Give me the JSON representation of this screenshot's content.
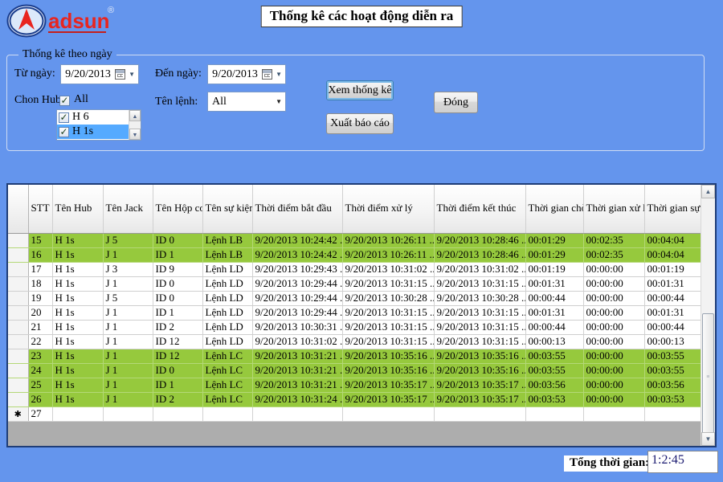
{
  "app": {
    "title": "Thống kê các hoạt động diễn ra",
    "logo_text": "adsun",
    "registered_mark": "®"
  },
  "colors": {
    "background": "#6495ED",
    "row_highlight": "#96c93d",
    "selection_blue": "#55aaff",
    "logo_red": "#e8251f",
    "logo_navy": "#1b3e8e",
    "total_text": "#191970"
  },
  "icons": {
    "dropdown_arrow": "▼",
    "up_arrow": "▲",
    "down_arrow": "▼",
    "checkmark": "✓",
    "new_row_star": "✱",
    "thumb_grip": "≡"
  },
  "filters": {
    "group_title": "Thống kê theo ngày",
    "from_label": "Từ ngày:",
    "from_value": "9/20/2013",
    "to_label": "Đến ngày:",
    "to_value": "9/20/2013",
    "hub_label": "Chon Hub:",
    "hub_all_label": "All",
    "hub_all_checked": true,
    "hub_items": [
      {
        "label": "H 6",
        "checked": true,
        "selected": false
      },
      {
        "label": "H 1s",
        "checked": true,
        "selected": true
      }
    ],
    "command_label": "Tên lệnh:",
    "command_value": "All",
    "view_button": "Xem thống kê",
    "export_button": "Xuất báo cáo",
    "close_button": "Đóng"
  },
  "table": {
    "columns": [
      "STT",
      "Tên Hub",
      "Tên Jack",
      "Tên Hộp con",
      "Tên sự kiện",
      "Thời điểm bắt đầu",
      "Thời điểm xử lý",
      "Thời điểm kết thúc",
      "Thời gian chờ",
      "Thời gian xử lý",
      "Thời gian sự kiện"
    ],
    "rows": [
      {
        "new_row": false,
        "highlight": true,
        "cells": [
          "15",
          "H 1s",
          "J 5",
          "ID 0",
          "Lệnh LB",
          "9/20/2013 10:24:42 ...",
          "9/20/2013 10:26:11 ...",
          "9/20/2013 10:28:46 ...",
          "00:01:29",
          "00:02:35",
          "00:04:04"
        ]
      },
      {
        "new_row": false,
        "highlight": true,
        "cells": [
          "16",
          "H 1s",
          "J 1",
          "ID 1",
          "Lệnh LB",
          "9/20/2013 10:24:42 ...",
          "9/20/2013 10:26:11 ...",
          "9/20/2013 10:28:46 ...",
          "00:01:29",
          "00:02:35",
          "00:04:04"
        ]
      },
      {
        "new_row": false,
        "highlight": false,
        "cells": [
          "17",
          "H 1s",
          "J 3",
          "ID 9",
          "Lệnh LD",
          "9/20/2013 10:29:43 ...",
          "9/20/2013 10:31:02 ...",
          "9/20/2013 10:31:02 ...",
          "00:01:19",
          "00:00:00",
          "00:01:19"
        ]
      },
      {
        "new_row": false,
        "highlight": false,
        "cells": [
          "18",
          "H 1s",
          "J 1",
          "ID 0",
          "Lệnh LD",
          "9/20/2013 10:29:44 ...",
          "9/20/2013 10:31:15 ...",
          "9/20/2013 10:31:15 ...",
          "00:01:31",
          "00:00:00",
          "00:01:31"
        ]
      },
      {
        "new_row": false,
        "highlight": false,
        "cells": [
          "19",
          "H 1s",
          "J 5",
          "ID 0",
          "Lệnh LD",
          "9/20/2013 10:29:44 ...",
          "9/20/2013 10:30:28 ...",
          "9/20/2013 10:30:28 ...",
          "00:00:44",
          "00:00:00",
          "00:00:44"
        ]
      },
      {
        "new_row": false,
        "highlight": false,
        "cells": [
          "20",
          "H 1s",
          "J 1",
          "ID 1",
          "Lệnh LD",
          "9/20/2013 10:29:44 ...",
          "9/20/2013 10:31:15 ...",
          "9/20/2013 10:31:15 ...",
          "00:01:31",
          "00:00:00",
          "00:01:31"
        ]
      },
      {
        "new_row": false,
        "highlight": false,
        "cells": [
          "21",
          "H 1s",
          "J 1",
          "ID 2",
          "Lệnh LD",
          "9/20/2013 10:30:31 ...",
          "9/20/2013 10:31:15 ...",
          "9/20/2013 10:31:15 ...",
          "00:00:44",
          "00:00:00",
          "00:00:44"
        ]
      },
      {
        "new_row": false,
        "highlight": false,
        "cells": [
          "22",
          "H 1s",
          "J 1",
          "ID 12",
          "Lệnh LD",
          "9/20/2013 10:31:02 ...",
          "9/20/2013 10:31:15 ...",
          "9/20/2013 10:31:15 ...",
          "00:00:13",
          "00:00:00",
          "00:00:13"
        ]
      },
      {
        "new_row": false,
        "highlight": true,
        "cells": [
          "23",
          "H 1s",
          "J 1",
          "ID 12",
          "Lệnh LC",
          "9/20/2013 10:31:21 ...",
          "9/20/2013 10:35:16 ...",
          "9/20/2013 10:35:16 ...",
          "00:03:55",
          "00:00:00",
          "00:03:55"
        ]
      },
      {
        "new_row": false,
        "highlight": true,
        "cells": [
          "24",
          "H 1s",
          "J 1",
          "ID 0",
          "Lệnh LC",
          "9/20/2013 10:31:21 ...",
          "9/20/2013 10:35:16 ...",
          "9/20/2013 10:35:16 ...",
          "00:03:55",
          "00:00:00",
          "00:03:55"
        ]
      },
      {
        "new_row": false,
        "highlight": true,
        "cells": [
          "25",
          "H 1s",
          "J 1",
          "ID 1",
          "Lệnh LC",
          "9/20/2013 10:31:21 ...",
          "9/20/2013 10:35:17 ...",
          "9/20/2013 10:35:17 ...",
          "00:03:56",
          "00:00:00",
          "00:03:56"
        ]
      },
      {
        "new_row": false,
        "highlight": true,
        "cells": [
          "26",
          "H 1s",
          "J 1",
          "ID 2",
          "Lệnh LC",
          "9/20/2013 10:31:24 ...",
          "9/20/2013 10:35:17 ...",
          "9/20/2013 10:35:17 ...",
          "00:03:53",
          "00:00:00",
          "00:03:53"
        ]
      },
      {
        "new_row": true,
        "highlight": false,
        "cells": [
          "27",
          "",
          "",
          "",
          "",
          "",
          "",
          "",
          "",
          "",
          ""
        ]
      }
    ]
  },
  "footer": {
    "total_label": "Tổng thời gian:",
    "total_value": "1:2:45"
  }
}
